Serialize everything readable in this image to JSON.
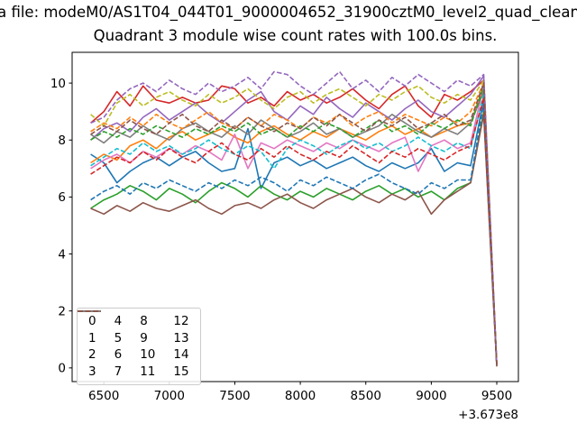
{
  "chart_data": {
    "type": "line",
    "suptitle": "a file: modeM0/AS1T04_044T01_9000004652_31900cztM0_level2_quad_clean",
    "title": "Quadrant 3 module wise count rates with 100.0s bins.",
    "xlabel": "",
    "ylabel": "",
    "x_offset_label": "+3.673e8",
    "xlim": [
      6258,
      9665
    ],
    "ylim": [
      -0.48,
      11.08
    ],
    "xticks": [
      6500,
      7000,
      7500,
      8000,
      8500,
      9000,
      9500
    ],
    "yticks": [
      0,
      2,
      4,
      6,
      8,
      10
    ],
    "grid": false,
    "legend_position": "lower left",
    "legend_columns": 4,
    "x": [
      6400,
      6500,
      6600,
      6700,
      6800,
      6900,
      7000,
      7100,
      7200,
      7300,
      7400,
      7500,
      7600,
      7700,
      7800,
      7900,
      8000,
      8100,
      8200,
      8300,
      8400,
      8500,
      8600,
      8700,
      8800,
      8900,
      9000,
      9100,
      9200,
      9300,
      9400,
      9500
    ],
    "series": [
      {
        "name": "0",
        "color": "#1f77b4",
        "linestyle": "solid",
        "values": [
          7.5,
          7.2,
          6.5,
          6.9,
          7.2,
          7.4,
          7.1,
          7.4,
          7.6,
          7.2,
          6.9,
          7.0,
          8.4,
          6.3,
          7.2,
          7.4,
          7.1,
          7.3,
          7.0,
          7.2,
          7.4,
          7.1,
          6.9,
          7.2,
          7.0,
          7.2,
          7.7,
          6.9,
          7.2,
          7.1,
          9.4,
          0.1
        ]
      },
      {
        "name": "1",
        "color": "#ff7f0e",
        "linestyle": "solid",
        "values": [
          7.2,
          7.5,
          7.3,
          7.8,
          8.0,
          7.7,
          8.1,
          8.3,
          8.0,
          8.2,
          8.4,
          8.1,
          7.9,
          8.3,
          8.5,
          8.2,
          8.0,
          8.3,
          8.1,
          8.4,
          8.2,
          8.0,
          8.3,
          8.5,
          8.2,
          8.4,
          8.1,
          8.3,
          8.5,
          8.6,
          9.9,
          0.1
        ]
      },
      {
        "name": "2",
        "color": "#2ca02c",
        "linestyle": "solid",
        "values": [
          5.6,
          5.9,
          6.1,
          6.4,
          6.2,
          5.9,
          6.3,
          6.1,
          5.8,
          6.2,
          6.5,
          6.3,
          6.0,
          6.4,
          6.1,
          5.9,
          6.2,
          6.0,
          6.3,
          6.1,
          5.9,
          6.2,
          6.4,
          6.1,
          6.3,
          6.0,
          6.2,
          5.9,
          6.3,
          6.5,
          9.0,
          0.08
        ]
      },
      {
        "name": "3",
        "color": "#d62728",
        "linestyle": "solid",
        "values": [
          8.6,
          9.0,
          9.7,
          9.2,
          9.9,
          9.4,
          9.3,
          9.5,
          9.3,
          9.4,
          9.9,
          9.8,
          9.3,
          9.5,
          9.2,
          9.7,
          9.4,
          9.6,
          9.3,
          9.5,
          9.8,
          9.4,
          9.1,
          9.6,
          9.9,
          9.2,
          8.8,
          9.6,
          9.4,
          9.7,
          10.1,
          0.1
        ]
      },
      {
        "name": "4",
        "color": "#9467bd",
        "linestyle": "solid",
        "values": [
          8.0,
          8.4,
          8.6,
          8.3,
          8.8,
          9.1,
          8.7,
          9.0,
          9.3,
          8.9,
          8.6,
          9.0,
          9.4,
          9.7,
          9.0,
          8.7,
          9.2,
          8.9,
          9.5,
          9.1,
          8.8,
          9.3,
          9.0,
          8.7,
          9.1,
          9.4,
          9.0,
          8.8,
          9.2,
          9.6,
          10.25,
          0.1
        ]
      },
      {
        "name": "5",
        "color": "#8c564b",
        "linestyle": "solid",
        "values": [
          5.6,
          5.4,
          5.7,
          5.5,
          5.8,
          5.6,
          5.5,
          5.7,
          5.9,
          5.6,
          5.4,
          5.7,
          5.8,
          5.6,
          5.9,
          6.1,
          5.8,
          5.6,
          5.9,
          6.1,
          6.3,
          6.0,
          5.8,
          6.1,
          5.9,
          6.2,
          5.4,
          5.9,
          6.2,
          6.5,
          8.9,
          0.05
        ]
      },
      {
        "name": "6",
        "color": "#e377c2",
        "linestyle": "solid",
        "values": [
          7.0,
          7.3,
          7.5,
          7.2,
          7.6,
          7.4,
          7.7,
          7.5,
          7.8,
          7.6,
          7.3,
          8.2,
          7.0,
          7.9,
          7.7,
          8.0,
          7.8,
          7.6,
          7.9,
          7.7,
          8.0,
          7.8,
          7.6,
          7.9,
          8.1,
          6.9,
          7.8,
          8.0,
          7.7,
          7.9,
          9.9,
          0.1
        ]
      },
      {
        "name": "7",
        "color": "#7f7f7f",
        "linestyle": "solid",
        "values": [
          8.2,
          7.9,
          8.3,
          8.1,
          8.5,
          8.2,
          8.0,
          8.4,
          8.6,
          8.3,
          8.1,
          8.5,
          8.2,
          8.7,
          8.4,
          8.1,
          8.3,
          8.6,
          8.2,
          8.4,
          8.1,
          8.3,
          8.5,
          8.9,
          8.6,
          8.3,
          8.1,
          8.4,
          8.2,
          8.6,
          9.7,
          0.1
        ]
      },
      {
        "name": "8",
        "color": "#bcbd22",
        "linestyle": "dashed",
        "values": [
          8.9,
          8.5,
          9.3,
          9.6,
          9.2,
          9.5,
          9.7,
          9.4,
          9.2,
          9.6,
          9.3,
          9.5,
          9.8,
          9.4,
          9.1,
          9.5,
          9.7,
          9.3,
          9.6,
          9.8,
          9.5,
          9.2,
          9.6,
          9.4,
          9.7,
          9.9,
          9.5,
          9.3,
          9.6,
          9.4,
          10.1,
          0.1
        ]
      },
      {
        "name": "9",
        "color": "#17becf",
        "linestyle": "dashed",
        "values": [
          7.1,
          7.4,
          7.7,
          7.5,
          7.9,
          7.6,
          7.8,
          7.5,
          7.7,
          8.0,
          7.7,
          7.5,
          7.8,
          7.6,
          7.0,
          7.7,
          8.0,
          7.8,
          7.5,
          7.8,
          8.0,
          7.7,
          7.9,
          7.6,
          7.8,
          8.1,
          7.8,
          7.6,
          7.9,
          7.7,
          9.6,
          0.1
        ]
      },
      {
        "name": "10",
        "color": "#1f77b4",
        "linestyle": "dashed",
        "values": [
          5.9,
          6.2,
          6.4,
          6.1,
          6.5,
          6.3,
          6.6,
          6.4,
          6.2,
          6.5,
          6.3,
          6.6,
          6.4,
          6.7,
          6.5,
          6.2,
          6.6,
          6.4,
          6.7,
          6.5,
          6.3,
          6.6,
          6.8,
          6.5,
          6.3,
          6.1,
          6.5,
          6.3,
          6.6,
          6.6,
          9.3,
          0.1
        ]
      },
      {
        "name": "11",
        "color": "#ff7f0e",
        "linestyle": "dashed",
        "values": [
          8.3,
          8.6,
          8.4,
          8.8,
          8.5,
          8.9,
          8.6,
          8.4,
          8.7,
          9.0,
          8.6,
          8.4,
          8.8,
          8.5,
          8.9,
          8.7,
          8.4,
          8.8,
          8.6,
          8.9,
          8.5,
          8.8,
          9.0,
          8.6,
          8.9,
          8.7,
          8.5,
          8.8,
          8.6,
          9.0,
          10.0,
          0.1
        ]
      },
      {
        "name": "12",
        "color": "#2ca02c",
        "linestyle": "dashed",
        "values": [
          8.0,
          8.3,
          8.1,
          8.4,
          8.2,
          8.5,
          8.3,
          8.1,
          8.4,
          8.2,
          8.5,
          8.3,
          8.6,
          8.2,
          8.4,
          8.1,
          8.5,
          8.3,
          8.6,
          8.4,
          8.1,
          8.4,
          8.7,
          8.3,
          8.5,
          8.2,
          8.6,
          8.4,
          8.7,
          8.5,
          9.9,
          0.1
        ]
      },
      {
        "name": "13",
        "color": "#d62728",
        "linestyle": "dashed",
        "values": [
          6.8,
          7.1,
          7.4,
          7.2,
          7.6,
          7.3,
          7.7,
          7.4,
          7.2,
          7.6,
          7.9,
          7.5,
          7.3,
          7.7,
          7.4,
          7.8,
          7.5,
          7.3,
          7.6,
          7.4,
          7.8,
          7.5,
          7.2,
          7.6,
          7.4,
          7.7,
          7.5,
          7.3,
          7.6,
          7.8,
          9.5,
          0.1
        ]
      },
      {
        "name": "14",
        "color": "#9467bd",
        "linestyle": "dashed",
        "values": [
          8.6,
          8.8,
          9.4,
          9.8,
          10.0,
          9.7,
          10.1,
          9.8,
          9.6,
          10.0,
          9.7,
          9.9,
          10.2,
          9.8,
          10.4,
          10.3,
          9.9,
          9.6,
          10.0,
          10.4,
          9.8,
          10.1,
          9.7,
          10.2,
          9.9,
          10.3,
          10.0,
          9.7,
          10.1,
          9.9,
          10.3,
          0.1
        ]
      },
      {
        "name": "15",
        "color": "#8c564b",
        "linestyle": "dashed",
        "values": [
          8.2,
          8.5,
          8.3,
          8.7,
          8.4,
          8.2,
          8.6,
          8.9,
          8.5,
          8.3,
          8.7,
          8.4,
          8.8,
          8.5,
          8.3,
          8.6,
          8.4,
          8.8,
          8.5,
          8.9,
          8.6,
          8.3,
          8.7,
          8.5,
          8.8,
          8.4,
          8.6,
          8.9,
          8.5,
          8.7,
          10.0,
          0.1
        ]
      }
    ]
  },
  "style": {
    "axis_color": "#000000",
    "legend_border_color": "#cccccc",
    "background": "#ffffff"
  }
}
